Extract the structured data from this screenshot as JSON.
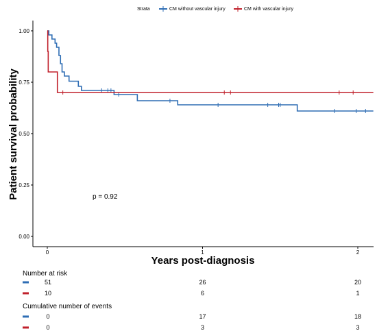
{
  "legend": {
    "title": "Strata",
    "items": [
      {
        "label": "CM without vascular injury",
        "color": "#2E6DB4"
      },
      {
        "label": "CM with vascular injury",
        "color": "#C0202B"
      }
    ]
  },
  "chart_data": {
    "type": "line",
    "ylabel": "Patient survival probability",
    "xlabel": "Years post-diagnosis",
    "xlim": [
      0,
      2.1
    ],
    "ylim": [
      0,
      1
    ],
    "x_ticks": [
      "0",
      "1",
      "2"
    ],
    "y_ticks": [
      "0.00",
      "0.25",
      "0.50",
      "0.75",
      "1.00"
    ],
    "annotation": "p = 0.92",
    "series": [
      {
        "name": "CM without vascular injury",
        "color": "#2E6DB4",
        "steps": [
          [
            0,
            1.0
          ],
          [
            0.01,
            0.98
          ],
          [
            0.03,
            0.96
          ],
          [
            0.05,
            0.94
          ],
          [
            0.06,
            0.92
          ],
          [
            0.075,
            0.88
          ],
          [
            0.085,
            0.84
          ],
          [
            0.095,
            0.8
          ],
          [
            0.11,
            0.78
          ],
          [
            0.14,
            0.755
          ],
          [
            0.2,
            0.73
          ],
          [
            0.22,
            0.71
          ],
          [
            0.43,
            0.69
          ],
          [
            0.58,
            0.66
          ],
          [
            0.84,
            0.64
          ],
          [
            1.61,
            0.61
          ],
          [
            2.1,
            0.61
          ]
        ],
        "censor": [
          0.35,
          0.39,
          0.41,
          0.46,
          0.79,
          1.1,
          1.42,
          1.49,
          1.5,
          1.85,
          1.99,
          2.05
        ]
      },
      {
        "name": "CM with vascular injury",
        "color": "#C0202B",
        "steps": [
          [
            0,
            1.0
          ],
          [
            0.003,
            0.9
          ],
          [
            0.006,
            0.8
          ],
          [
            0.065,
            0.7
          ],
          [
            2.1,
            0.7
          ]
        ],
        "censor": [
          0.1,
          1.14,
          1.18,
          1.88,
          1.97
        ]
      }
    ]
  },
  "risk_table": {
    "title": "Number at risk",
    "rows": [
      {
        "color": "#2E6DB4",
        "values": [
          "51",
          "26",
          "20"
        ]
      },
      {
        "color": "#C0202B",
        "values": [
          "10",
          "6",
          "1"
        ]
      }
    ]
  },
  "events_table": {
    "title": "Cumulative number of events",
    "rows": [
      {
        "color": "#2E6DB4",
        "values": [
          "0",
          "17",
          "18"
        ]
      },
      {
        "color": "#C0202B",
        "values": [
          "0",
          "3",
          "3"
        ]
      }
    ]
  }
}
